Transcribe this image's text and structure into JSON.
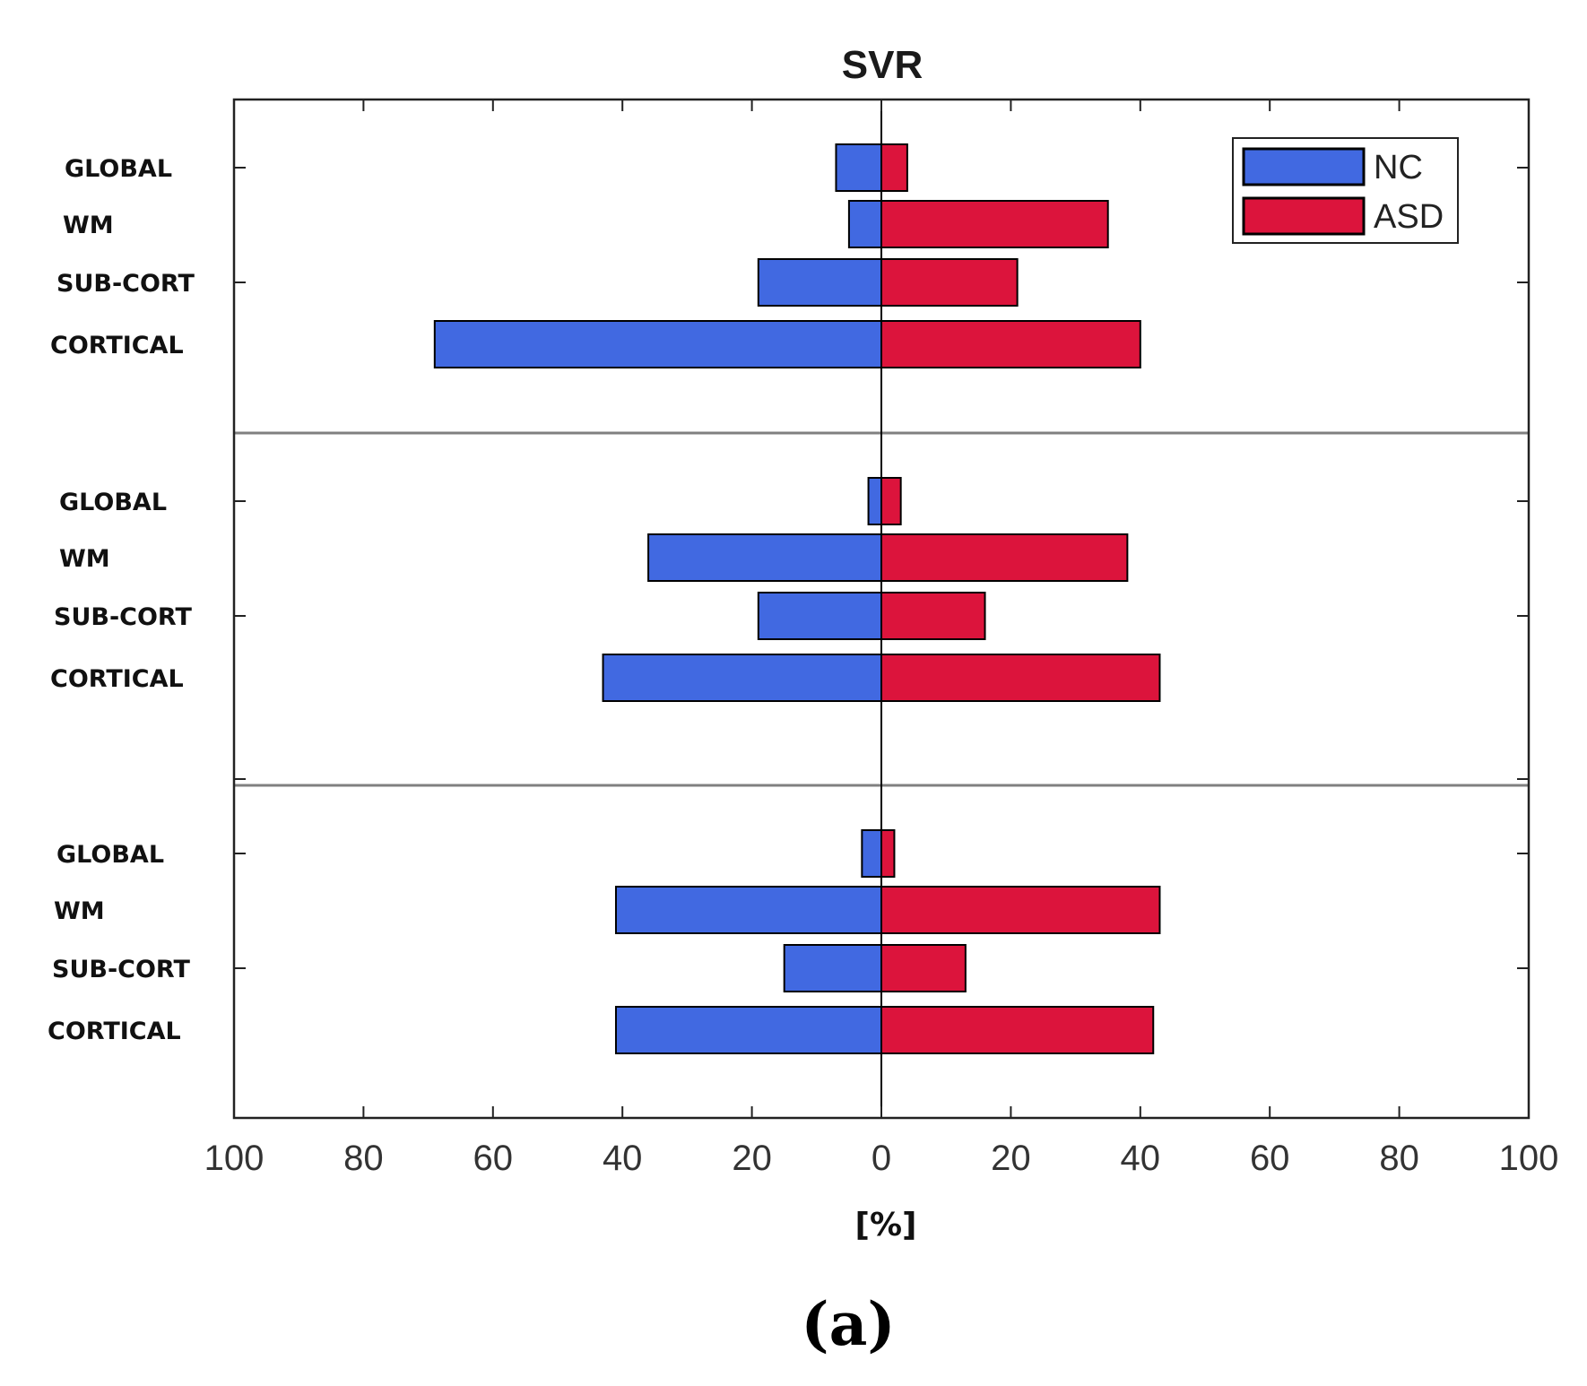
{
  "chart_data": {
    "type": "bar",
    "orientation": "horizontal-back-to-back",
    "title": "SVR",
    "xlabel": "[%]",
    "xlim": [
      -100,
      100
    ],
    "x_ticks": [
      -100,
      -80,
      -60,
      -40,
      -20,
      0,
      20,
      40,
      60,
      80,
      100
    ],
    "x_tick_labels": [
      "100",
      "80",
      "60",
      "40",
      "20",
      "0",
      "20",
      "40",
      "60",
      "80",
      "100"
    ],
    "categories": [
      "GLOBAL",
      "WM",
      "SUB-CORT",
      "CORTICAL"
    ],
    "legend": {
      "placement": "top-right",
      "entries": [
        {
          "name": "NC",
          "color": "#4169e1"
        },
        {
          "name": "ASD",
          "color": "#dc143c"
        }
      ]
    },
    "panels": [
      {
        "series": [
          {
            "name": "NC",
            "side": "left",
            "values": [
              7,
              5,
              19,
              69
            ]
          },
          {
            "name": "ASD",
            "side": "right",
            "values": [
              4,
              35,
              21,
              40
            ]
          }
        ]
      },
      {
        "series": [
          {
            "name": "NC",
            "side": "left",
            "values": [
              2,
              36,
              19,
              43
            ]
          },
          {
            "name": "ASD",
            "side": "right",
            "values": [
              3,
              38,
              16,
              43
            ]
          }
        ]
      },
      {
        "series": [
          {
            "name": "NC",
            "side": "left",
            "values": [
              3,
              41,
              15,
              41
            ]
          },
          {
            "name": "ASD",
            "side": "right",
            "values": [
              2,
              43,
              13,
              42
            ]
          }
        ]
      }
    ]
  },
  "caption": "(a)"
}
